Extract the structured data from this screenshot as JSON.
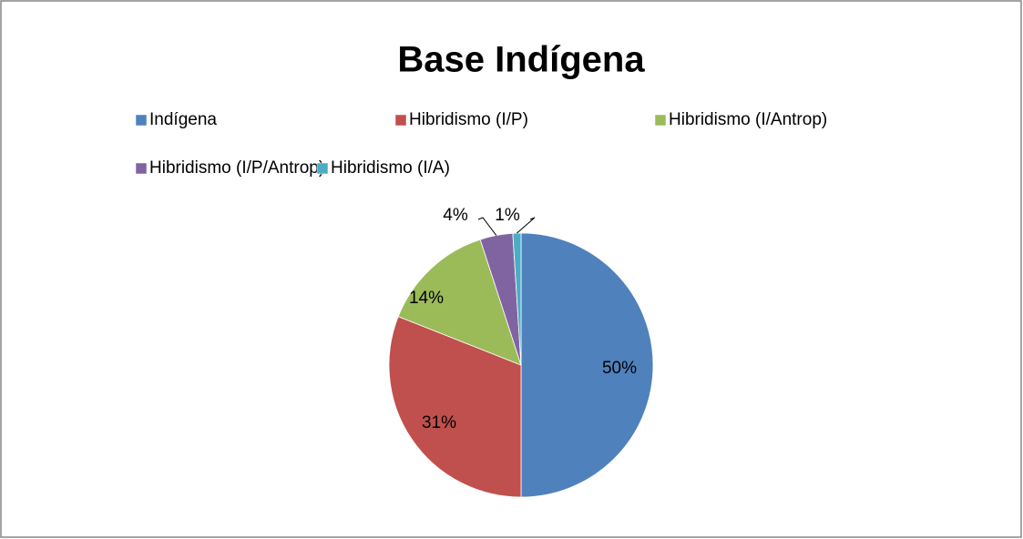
{
  "chart_data": {
    "type": "pie",
    "title": "Base Indígena",
    "categories": [
      "Indígena",
      "Hibridismo (I/P)",
      "Hibridismo (I/Antrop)",
      "Hibridismo (I/P/Antrop)",
      "Hibridismo (I/A)"
    ],
    "values": [
      50,
      31,
      14,
      4,
      1
    ],
    "value_labels": [
      "50%",
      "31%",
      "14%",
      "4%",
      "1%"
    ],
    "colors": [
      "#4f81bd",
      "#c0504d",
      "#9bbb59",
      "#8064a2",
      "#4bacc6"
    ]
  }
}
